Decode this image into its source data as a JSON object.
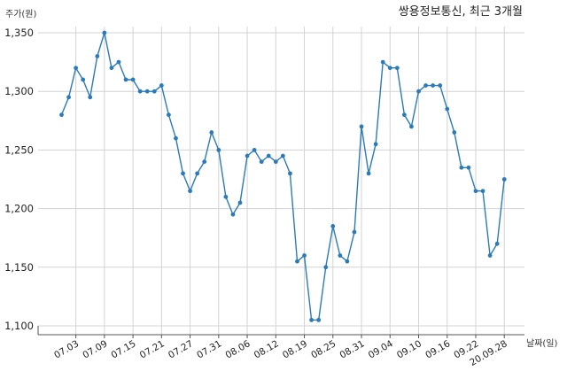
{
  "chart_data": {
    "type": "line",
    "title": "쌍용정보통신, 최근 3개월",
    "ylabel": "주가(원)",
    "xlabel": "날짜(일)",
    "ylim": [
      1100,
      1360
    ],
    "yticks": [
      1100,
      1150,
      1200,
      1250,
      1300,
      1350
    ],
    "ytick_labels": [
      "1,100",
      "1,150",
      "1,200",
      "1,250",
      "1,300",
      "1,350"
    ],
    "xtick_labels": [
      "07.03",
      "07.09",
      "07.15",
      "07.21",
      "07.27",
      "07.31",
      "08.06",
      "08.12",
      "08.19",
      "08.25",
      "08.31",
      "09.04",
      "09.10",
      "09.16",
      "09.22",
      "20.09.28"
    ],
    "xtick_index": [
      2,
      6,
      10,
      14,
      18,
      22,
      26,
      30,
      34,
      38,
      42,
      46,
      50,
      54,
      58,
      62
    ],
    "grid": true,
    "color": "#2b7bba",
    "series": [
      {
        "values": [
          1280,
          1295,
          1320,
          1310,
          1295,
          1330,
          1350,
          1320,
          1325,
          1310,
          1310,
          1300,
          1300,
          1300,
          1305,
          1280,
          1260,
          1230,
          1215,
          1230,
          1240,
          1265,
          1250,
          1210,
          1195,
          1205,
          1245,
          1250,
          1240,
          1245,
          1240,
          1245,
          1230,
          1155,
          1160,
          1105,
          1105,
          1150,
          1185,
          1160,
          1155,
          1180,
          1270,
          1230,
          1255,
          1325,
          1320,
          1320,
          1280,
          1270,
          1300,
          1305,
          1305,
          1305,
          1285,
          1265,
          1235,
          1235,
          1215,
          1215,
          1160,
          1170,
          1225
        ]
      }
    ]
  }
}
